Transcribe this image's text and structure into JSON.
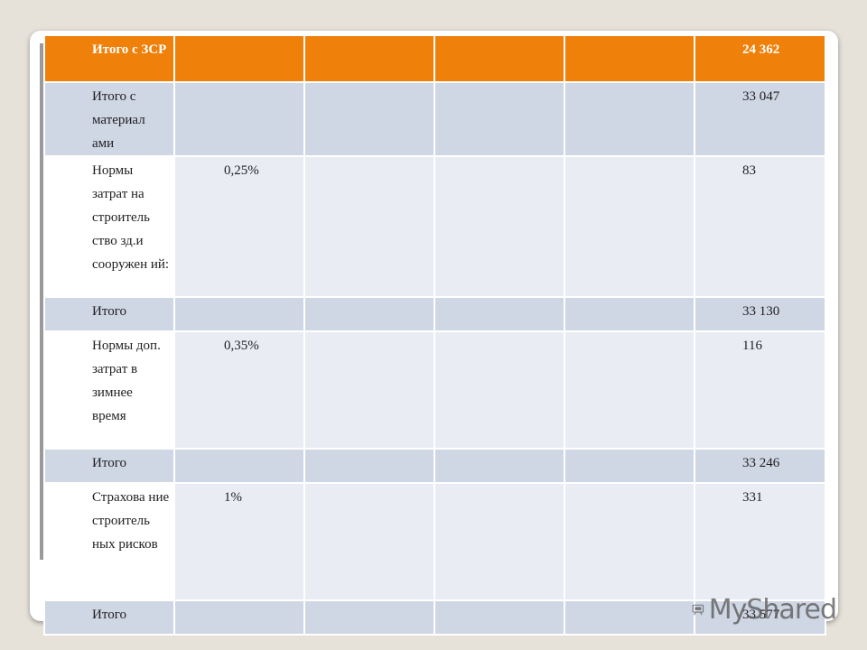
{
  "rows": [
    {
      "label": "Итого с ЗСР",
      "rate": "",
      "value": "24 362"
    },
    {
      "label": "Итого с материал ами",
      "rate": "",
      "value": "33 047"
    },
    {
      "label": "Нормы затрат на строитель ство зд.и сооружен ий:",
      "rate": "0,25%",
      "value": "83"
    },
    {
      "label": "Итого",
      "rate": "",
      "value": "33 130"
    },
    {
      "label": "Нормы доп. затрат в зимнее время",
      "rate": "0,35%",
      "value": "116"
    },
    {
      "label": "Итого",
      "rate": "",
      "value": "33 246"
    },
    {
      "label": "Страхова ние строитель ных рисков",
      "rate": "1%",
      "value": "331"
    },
    {
      "label": "Итого",
      "rate": "",
      "value": "33 577"
    }
  ],
  "watermark": {
    "text": "MyShared",
    "icon": "projector-icon"
  }
}
